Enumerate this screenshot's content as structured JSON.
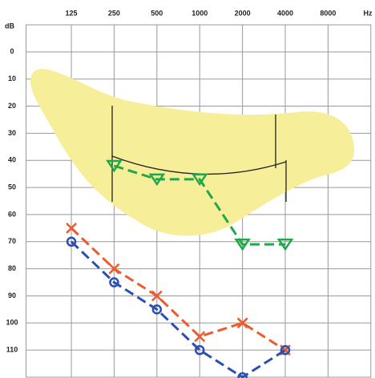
{
  "chart_data": {
    "type": "audiogram",
    "x_unit": "Hz",
    "y_unit": "dB",
    "x": [
      125,
      250,
      500,
      1000,
      2000,
      4000
    ],
    "xlim": [
      60,
      16000
    ],
    "xticks": [
      125,
      250,
      500,
      1000,
      2000,
      4000,
      8000
    ],
    "xscale": "log",
    "ylim": [
      -10,
      120
    ],
    "yticks": [
      0,
      10,
      20,
      30,
      40,
      50,
      60,
      70,
      80,
      90,
      100,
      110
    ],
    "y_inverted": true,
    "grid": true,
    "series": [
      {
        "color": "#ee5a2f",
        "marker": "x",
        "values": [
          65,
          80,
          90,
          105,
          100,
          110
        ]
      },
      {
        "color": "#2a4fb0",
        "marker": "o",
        "values": [
          70,
          85,
          95,
          110,
          120,
          110
        ]
      },
      {
        "color": "#1fa84a",
        "marker": "v",
        "values": [
          null,
          42,
          47,
          47,
          71,
          71
        ]
      }
    ]
  }
}
